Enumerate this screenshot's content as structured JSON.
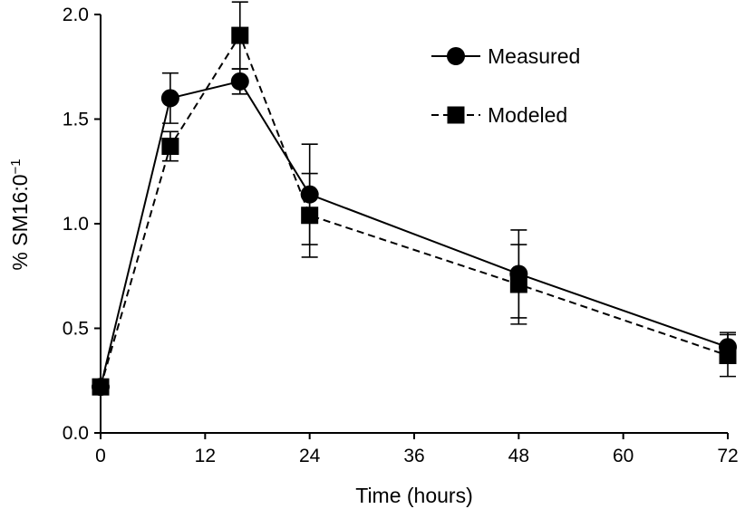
{
  "chart_data": {
    "type": "line",
    "title": "",
    "xlabel": "Time (hours)",
    "ylabel": "% SM16:0",
    "ylabel_superscript": "−1",
    "xlim": [
      0,
      72
    ],
    "ylim": [
      0,
      2.0
    ],
    "xticks": [
      0,
      12,
      24,
      36,
      48,
      60,
      72
    ],
    "yticks": [
      0.0,
      0.5,
      1.0,
      1.5,
      2.0
    ],
    "ytick_labels": [
      "0.0",
      "0.5",
      "1.0",
      "1.5",
      "2.0"
    ],
    "grid": false,
    "legend_position": "top-right",
    "series": [
      {
        "name": "Measured",
        "marker": "circle",
        "line": "solid",
        "color": "#000000",
        "x": [
          0,
          8,
          16,
          24,
          48,
          72
        ],
        "values": [
          0.22,
          1.6,
          1.68,
          1.14,
          0.76,
          0.41
        ],
        "error": [
          0,
          0.12,
          0.06,
          0.24,
          0.21,
          0.07
        ]
      },
      {
        "name": "Modeled",
        "marker": "square",
        "line": "dashed",
        "color": "#000000",
        "x": [
          0,
          8,
          16,
          24,
          48,
          72
        ],
        "values": [
          0.22,
          1.37,
          1.9,
          1.04,
          0.71,
          0.37
        ],
        "error": [
          0,
          0.07,
          0.16,
          0.2,
          0.19,
          0.1
        ]
      }
    ]
  }
}
